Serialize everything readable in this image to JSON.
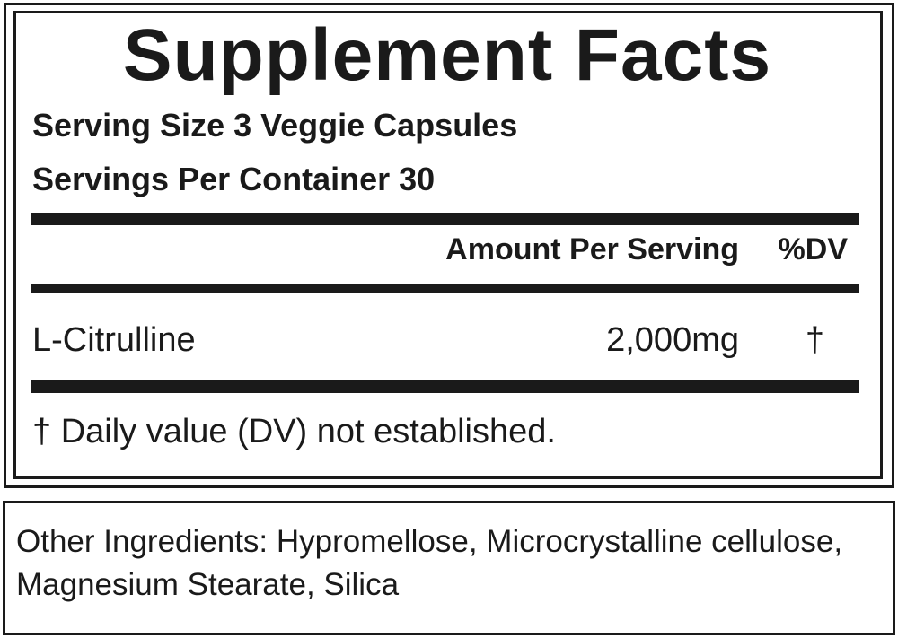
{
  "title": "Supplement Facts",
  "serving_size": "Serving Size 3 Veggie Capsules",
  "servings_per_container": "Servings Per Container 30",
  "header": {
    "amount": "Amount Per Serving",
    "dv": "%DV"
  },
  "rows": [
    {
      "name": "L-Citrulline",
      "amount": "2,000mg",
      "dv": "†"
    }
  ],
  "footnote": "† Daily value (DV) not established.",
  "other_ingredients": {
    "line1": "Other Ingredients: Hypromellose, Microcrystalline cellulose,",
    "line2": "Magnesium Stearate, Silica"
  }
}
